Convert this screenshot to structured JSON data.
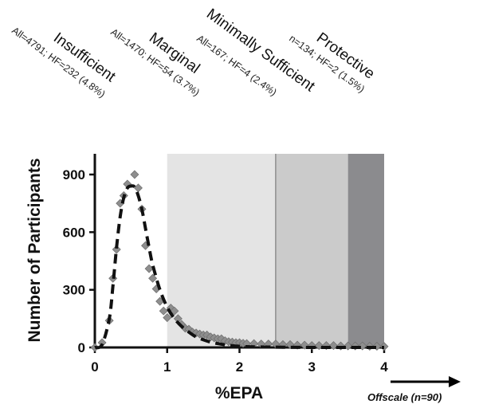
{
  "chart_data": {
    "type": "scatter",
    "xlabel": "%EPA",
    "ylabel": "Number of Participants",
    "xlim": [
      0,
      4
    ],
    "ylim": [
      0,
      1000
    ],
    "x_ticks": [
      "0",
      "1",
      "2",
      "3",
      "4"
    ],
    "y_ticks": [
      "0",
      "300",
      "600",
      "900"
    ],
    "grid": false,
    "zones": [
      {
        "title": "Insufficient",
        "subtitle": "All=4791; HF=232 (4.8%)",
        "x_range": [
          0,
          1
        ],
        "color": "#ffffff"
      },
      {
        "title": "Marginal",
        "subtitle": "All=1470; HF=54 (3.7%)",
        "x_range": [
          1,
          2.5
        ],
        "color": "#e4e4e4"
      },
      {
        "title": "Minimally Sufficient",
        "subtitle": "All=167; HF=4 (2.4%)",
        "x_range": [
          2.5,
          3.5
        ],
        "color": "#cbcbcb"
      },
      {
        "title": "Protective",
        "subtitle": "n=134; HF=2 (1.5%)",
        "x_range": [
          3.5,
          4
        ],
        "color": "#8b8b8e"
      }
    ],
    "series": [
      {
        "kind": "points",
        "marker": "diamond",
        "color": "#8e8e8e",
        "x": [
          0.0,
          0.1,
          0.2,
          0.25,
          0.3,
          0.35,
          0.4,
          0.45,
          0.55,
          0.6,
          0.65,
          0.7,
          0.75,
          0.8,
          0.85,
          0.9,
          0.95,
          1.0,
          1.05,
          1.1,
          1.15,
          1.2,
          1.25,
          1.3,
          1.35,
          1.4,
          1.45,
          1.5,
          1.55,
          1.6,
          1.65,
          1.7,
          1.75,
          1.8,
          1.85,
          1.9,
          1.95,
          2.0,
          2.05,
          2.1,
          2.2,
          2.3,
          2.4,
          2.5,
          2.6,
          2.7,
          2.8,
          2.9,
          3.0,
          3.1,
          3.2,
          3.3,
          3.4,
          3.5,
          3.6,
          3.7,
          3.8,
          3.9,
          4.0
        ],
        "y": [
          0,
          25,
          140,
          360,
          510,
          750,
          790,
          850,
          900,
          830,
          720,
          530,
          410,
          360,
          305,
          240,
          190,
          155,
          205,
          190,
          150,
          120,
          100,
          95,
          80,
          75,
          70,
          65,
          65,
          55,
          50,
          45,
          45,
          35,
          30,
          28,
          25,
          25,
          22,
          20,
          20,
          18,
          18,
          18,
          15,
          15,
          12,
          12,
          10,
          10,
          10,
          10,
          8,
          8,
          8,
          8,
          6,
          6,
          5
        ]
      },
      {
        "kind": "fit",
        "style": "dashed",
        "color": "#111111",
        "x": [
          0.0,
          0.1,
          0.2,
          0.25,
          0.3,
          0.35,
          0.4,
          0.45,
          0.5,
          0.55,
          0.6,
          0.65,
          0.7,
          0.75,
          0.8,
          0.9,
          1.0,
          1.1,
          1.2,
          1.3,
          1.4,
          1.5,
          1.6,
          1.7,
          1.8,
          1.9,
          2.0,
          2.1,
          2.2,
          2.4,
          2.6,
          3.0,
          3.5,
          4.0
        ],
        "y": [
          0,
          15,
          150,
          320,
          520,
          680,
          780,
          830,
          840,
          835,
          790,
          720,
          620,
          520,
          430,
          300,
          210,
          150,
          110,
          80,
          55,
          40,
          28,
          20,
          14,
          9,
          6,
          4,
          3,
          2,
          1,
          0,
          0,
          0
        ]
      }
    ],
    "annotation": {
      "text": "Offscale (n=90)",
      "arrow": "right"
    }
  }
}
